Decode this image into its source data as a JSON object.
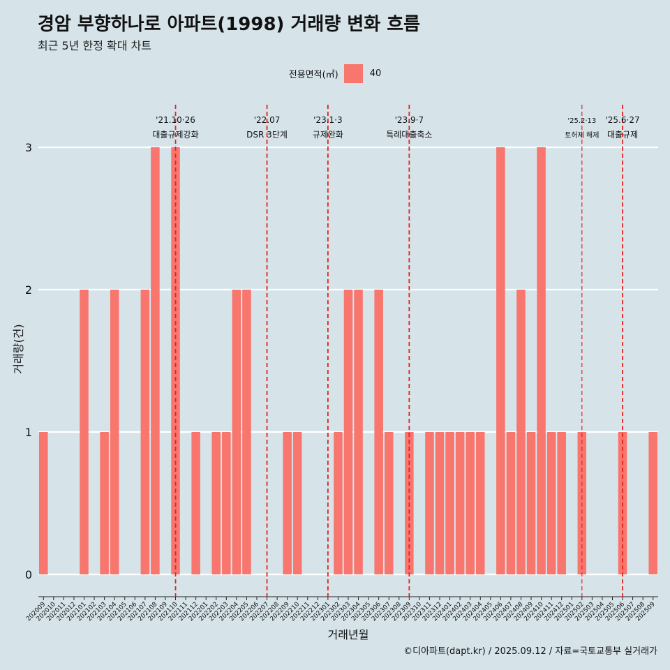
{
  "title": "경암 부향하나로 아파트(1998) 거래량 변화 흐름",
  "subtitle": "최근 5년 한정 확대 차트",
  "legend": {
    "title": "전용면적(㎡)",
    "item": "40",
    "color": "#f8766d"
  },
  "caption": "©디아파트(dapt.kr) / 2025.09.12 / 자료=국토교통부 실거래가",
  "chart_data": {
    "type": "bar",
    "xlabel": "거래년월",
    "ylabel": "거래량(건)",
    "ylim": [
      0,
      3
    ],
    "yticks": [
      0,
      1,
      2,
      3
    ],
    "grid": "horizontal",
    "legend_position": "top",
    "bar_color": "#f8766d",
    "categories": [
      "202009",
      "202010",
      "202011",
      "202012",
      "202101",
      "202102",
      "202103",
      "202104",
      "202105",
      "202106",
      "202107",
      "202108",
      "202109",
      "202110",
      "202111",
      "202112",
      "202201",
      "202202",
      "202203",
      "202204",
      "202205",
      "202206",
      "202207",
      "202208",
      "202209",
      "202210",
      "202211",
      "202212",
      "202301",
      "202302",
      "202303",
      "202304",
      "202305",
      "202306",
      "202307",
      "202308",
      "202309",
      "202310",
      "202311",
      "202312",
      "202401",
      "202402",
      "202403",
      "202404",
      "202405",
      "202406",
      "202407",
      "202408",
      "202409",
      "202410",
      "202411",
      "202412",
      "202501",
      "202502",
      "202503",
      "202504",
      "202505",
      "202506",
      "202507",
      "202508",
      "202509"
    ],
    "series": [
      {
        "values": [
          1,
          0,
          0,
          0,
          2,
          0,
          1,
          2,
          0,
          0,
          2,
          3,
          0,
          3,
          0,
          1,
          0,
          1,
          1,
          2,
          2,
          0,
          0,
          0,
          1,
          1,
          0,
          0,
          0,
          1,
          2,
          2,
          0,
          2,
          1,
          0,
          1,
          0,
          1,
          1,
          1,
          1,
          1,
          1,
          0,
          3,
          1,
          2,
          1,
          3,
          1,
          1,
          0,
          1,
          0,
          0,
          0,
          1,
          0,
          0,
          1
        ]
      }
    ],
    "annotations": [
      {
        "x": "202110",
        "lines": [
          "'21.10·26",
          "대출규제강화"
        ]
      },
      {
        "x": "202207",
        "lines": [
          "'22.07",
          "DSR 3단계"
        ]
      },
      {
        "x": "202301",
        "lines": [
          "'23.1·3",
          "규제완화"
        ]
      },
      {
        "x": "202309",
        "lines": [
          "'23.9·7",
          "특례대출축소"
        ]
      },
      {
        "x": "202502",
        "lines": [
          "'25.2·13",
          "토허제 해제"
        ],
        "small": true
      },
      {
        "x": "202506",
        "lines": [
          "'25.6·27",
          "대출규제"
        ]
      }
    ]
  }
}
